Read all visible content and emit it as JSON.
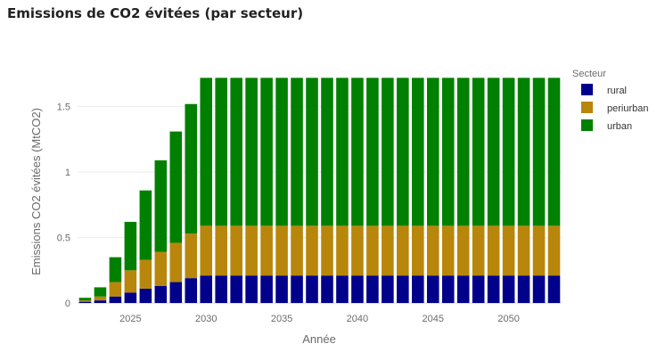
{
  "chart_data": {
    "type": "bar",
    "stacked": true,
    "title": "Emissions de CO2 évitées (par secteur)",
    "xlabel": "Année",
    "ylabel": "Emissions CO2 évitées (MtCO2)",
    "xlim": [
      2021.5,
      2053.5
    ],
    "ylim": [
      -0.02,
      1.77
    ],
    "xticks": [
      2025,
      2030,
      2035,
      2040,
      2045,
      2050
    ],
    "yticks": [
      0,
      0.5,
      1,
      1.5
    ],
    "ytick_labels": [
      "0",
      "0.5",
      "1",
      "1.5"
    ],
    "grid": true,
    "legend_title": "Secteur",
    "legend_position": "right",
    "x": [
      2022,
      2023,
      2024,
      2025,
      2026,
      2027,
      2028,
      2029,
      2030,
      2031,
      2032,
      2033,
      2034,
      2035,
      2036,
      2037,
      2038,
      2039,
      2040,
      2041,
      2042,
      2043,
      2044,
      2045,
      2046,
      2047,
      2048,
      2049,
      2050,
      2051,
      2052,
      2053
    ],
    "series": [
      {
        "name": "rural",
        "color": "#00008b",
        "values": [
          0.01,
          0.02,
          0.05,
          0.08,
          0.11,
          0.13,
          0.16,
          0.19,
          0.21,
          0.21,
          0.21,
          0.21,
          0.21,
          0.21,
          0.21,
          0.21,
          0.21,
          0.21,
          0.21,
          0.21,
          0.21,
          0.21,
          0.21,
          0.21,
          0.21,
          0.21,
          0.21,
          0.21,
          0.21,
          0.21,
          0.21,
          0.21
        ]
      },
      {
        "name": "periurban",
        "color": "#b8860b",
        "values": [
          0.01,
          0.03,
          0.11,
          0.17,
          0.22,
          0.26,
          0.3,
          0.34,
          0.38,
          0.38,
          0.38,
          0.38,
          0.38,
          0.38,
          0.38,
          0.38,
          0.38,
          0.38,
          0.38,
          0.38,
          0.38,
          0.38,
          0.38,
          0.38,
          0.38,
          0.38,
          0.38,
          0.38,
          0.38,
          0.38,
          0.38,
          0.38
        ]
      },
      {
        "name": "urban",
        "color": "#008000",
        "values": [
          0.02,
          0.07,
          0.19,
          0.37,
          0.53,
          0.7,
          0.85,
          0.99,
          1.13,
          1.13,
          1.13,
          1.13,
          1.13,
          1.13,
          1.13,
          1.13,
          1.13,
          1.13,
          1.13,
          1.13,
          1.13,
          1.13,
          1.13,
          1.13,
          1.13,
          1.13,
          1.13,
          1.13,
          1.13,
          1.13,
          1.13,
          1.13
        ]
      }
    ]
  }
}
